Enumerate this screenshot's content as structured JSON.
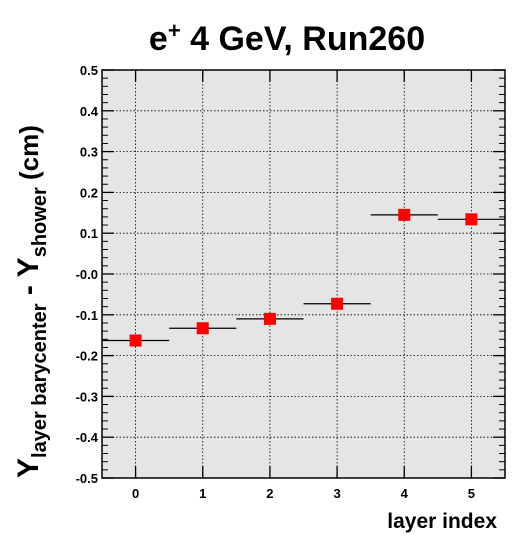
{
  "chart_data": {
    "type": "scatter",
    "title": {
      "particle": "e",
      "charge": "+",
      "rest": " 4 GeV, Run260"
    },
    "xlabel": "layer index",
    "ylabel": {
      "main_1": "Y",
      "sub_1": "layer barycenter",
      "separator": " - ",
      "main_2": "Y",
      "sub_2": "shower",
      "unit": " (cm)"
    },
    "xlim": [
      -0.5,
      5.5
    ],
    "ylim": [
      -0.5,
      0.5
    ],
    "x_ticks": [
      "0",
      "1",
      "2",
      "3",
      "4",
      "5"
    ],
    "y_ticks": [
      "-0.5",
      "-0.4",
      "-0.3",
      "-0.2",
      "-0.1",
      "-0.0",
      "0.1",
      "0.2",
      "0.3",
      "0.4",
      "0.5"
    ],
    "grid": true,
    "marker_color": "#ff0000",
    "background_color": "#e5e5e5",
    "series": [
      {
        "x": [
          0,
          1,
          2,
          3,
          4,
          5
        ],
        "y": [
          -0.163,
          -0.133,
          -0.11,
          -0.073,
          0.145,
          0.134
        ],
        "x_error": 0.5
      }
    ]
  }
}
